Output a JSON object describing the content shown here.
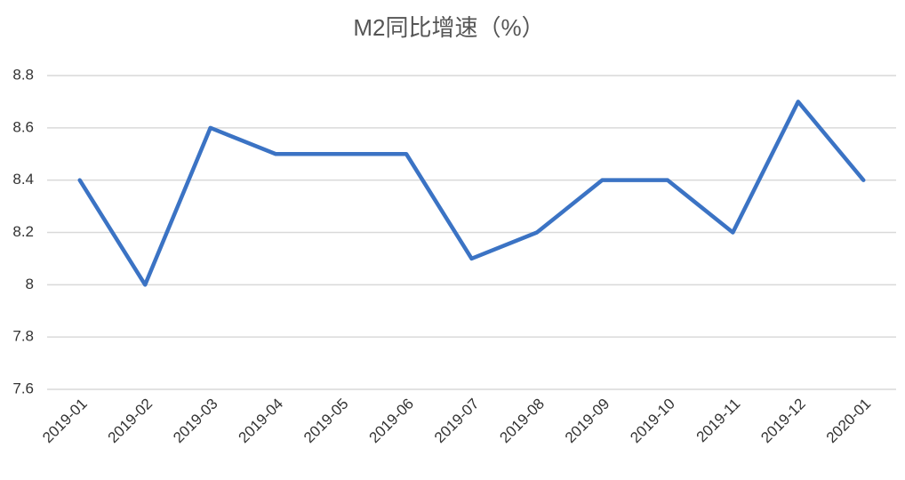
{
  "chart_data": {
    "type": "line",
    "title": "M2同比增速（%）",
    "categories": [
      "2019-01",
      "2019-02",
      "2019-03",
      "2019-04",
      "2019-05",
      "2019-06",
      "2019-07",
      "2019-08",
      "2019-09",
      "2019-10",
      "2019-11",
      "2019-12",
      "2020-01"
    ],
    "series": [
      {
        "name": "M2同比增速",
        "color": "#3b73c4",
        "values": [
          8.4,
          8.0,
          8.6,
          8.5,
          8.5,
          8.5,
          8.1,
          8.2,
          8.4,
          8.4,
          8.2,
          8.7,
          8.4
        ]
      }
    ],
    "ylim": [
      7.6,
      8.8
    ],
    "yticks": [
      7.6,
      7.8,
      8,
      8.2,
      8.4,
      8.6,
      8.8
    ],
    "grid": true
  }
}
